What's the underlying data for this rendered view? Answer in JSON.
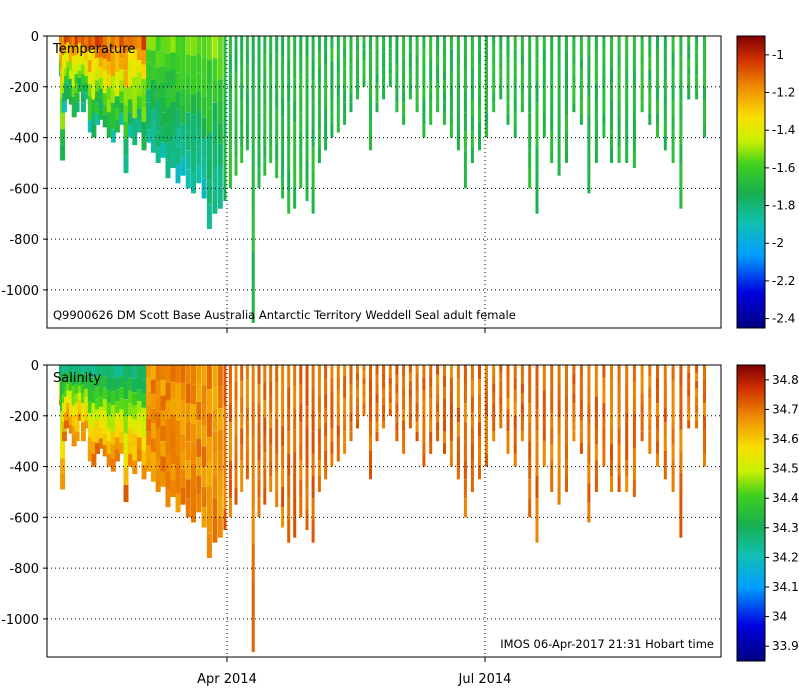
{
  "chart_data": [
    {
      "type": "heatmap",
      "title": "Temperature",
      "annotation": "Q9900626 DM Scott Base Australia Antarctic Territory Weddell Seal adult female",
      "xlabel": "",
      "ylabel": "",
      "ylim": [
        -1150,
        0
      ],
      "y_ticks": [
        0,
        -200,
        -400,
        -600,
        -800,
        -1000
      ],
      "x_ticks": [
        "Apr 2014",
        "Jul 2014"
      ],
      "grid": true,
      "colorbar": {
        "range": [
          -2.45,
          -0.9
        ],
        "ticks": [
          -1,
          -1.2,
          -1.4,
          -1.6,
          -1.8,
          -2,
          -2.2,
          -2.4
        ]
      },
      "profiles_max_depth": [
        -160,
        -490,
        -300,
        -250,
        -200,
        -270,
        -320,
        -300,
        -220,
        -300,
        -250,
        -380,
        -400,
        -350,
        -330,
        -360,
        -400,
        -420,
        -380,
        -350,
        -540,
        -400,
        -430,
        -380,
        -450,
        -420,
        -460,
        -500,
        -480,
        -560,
        -520,
        -580,
        -550,
        -600,
        -620,
        -580,
        -640,
        -760,
        -700,
        -680,
        -650,
        -600,
        -550,
        -500,
        -450,
        -1130,
        -600,
        -550,
        -500,
        -560,
        -640,
        -700,
        -680,
        -600,
        -650,
        -700,
        -500,
        -450,
        -400,
        -380,
        -350,
        -300,
        -250,
        -200,
        -450,
        -300,
        -250,
        -200,
        -300,
        -350,
        -250,
        -300,
        -400,
        -350,
        -300,
        -350,
        -400,
        -450,
        -600,
        -500,
        -450,
        -400,
        -300,
        -250,
        -350,
        -400,
        -300,
        -600,
        -700,
        -400,
        -500,
        -550,
        -500,
        -300,
        -350,
        -620,
        -500,
        -400,
        -500,
        -500,
        -500,
        -520,
        -300,
        -350,
        -400,
        -450,
        -500,
        -680,
        -250,
        -250,
        -400
      ]
    },
    {
      "type": "heatmap",
      "title": "Salinity",
      "annotation": "IMOS 06-Apr-2017 21:31 Hobart time",
      "xlabel": "",
      "ylabel": "",
      "ylim": [
        -1150,
        0
      ],
      "y_ticks": [
        0,
        -200,
        -400,
        -600,
        -800,
        -1000
      ],
      "x_ticks": [
        "Apr 2014",
        "Jul 2014"
      ],
      "grid": true,
      "colorbar": {
        "range": [
          33.85,
          34.85
        ],
        "ticks": [
          34.8,
          34.7,
          34.6,
          34.5,
          34.4,
          34.3,
          34.2,
          34.1,
          34,
          33.9
        ]
      }
    }
  ]
}
